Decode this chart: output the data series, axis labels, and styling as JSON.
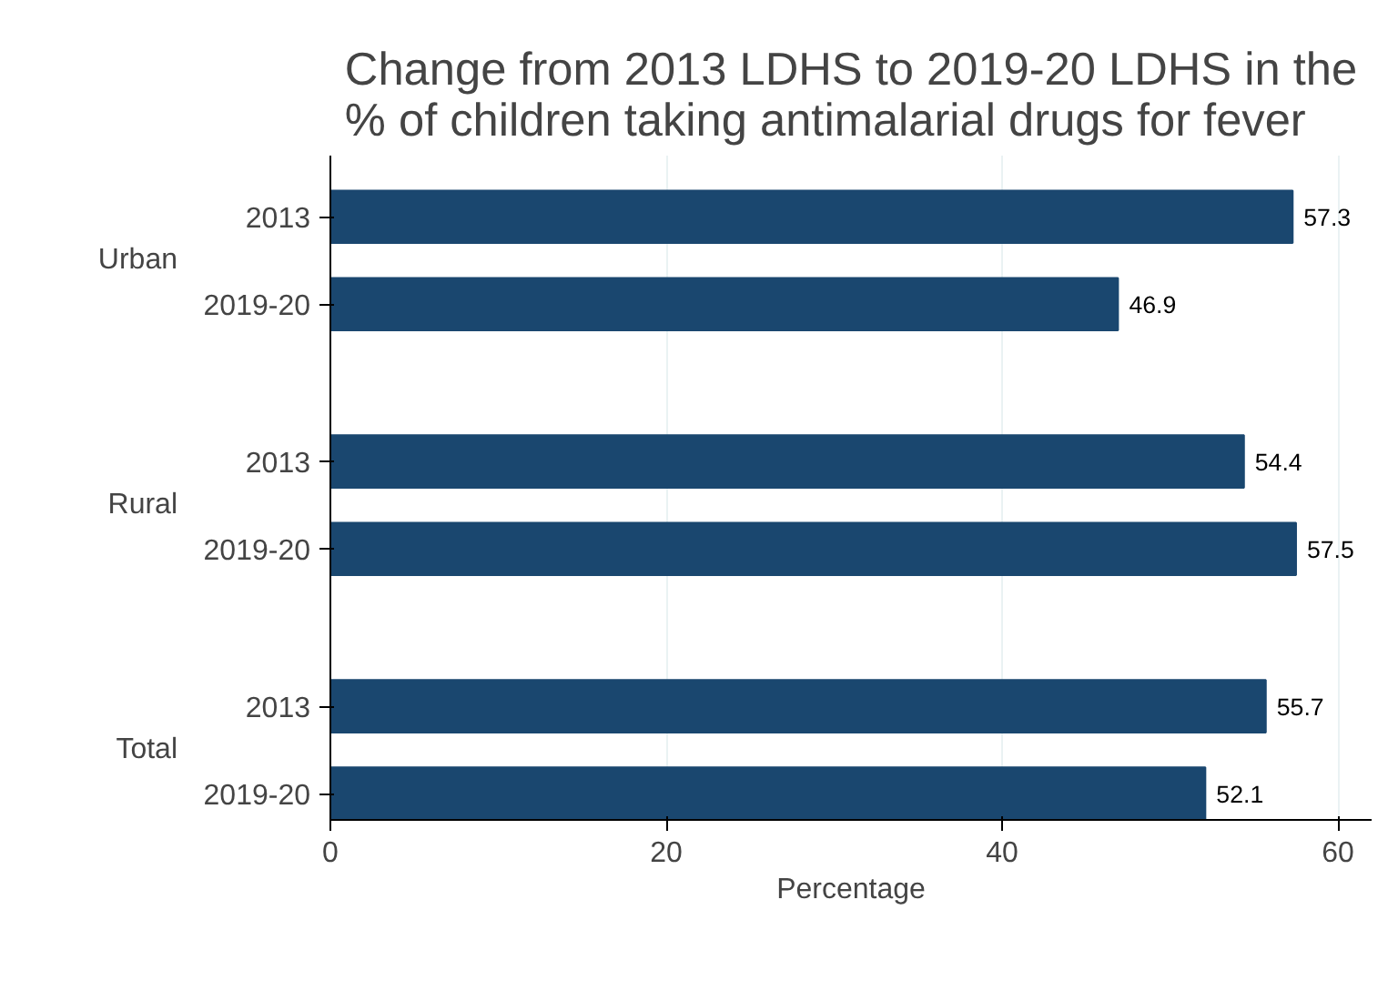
{
  "chart_data": {
    "type": "bar",
    "orientation": "horizontal",
    "title": "Change from 2013 LDHS to 2019-20 LDHS in the\n% of children taking antimalarial drugs for fever",
    "xlabel": "Percentage",
    "categories": [
      "2013",
      "2019-20",
      "2013",
      "2019-20",
      "2013",
      "2019-20"
    ],
    "annotations": [
      "Urban",
      "Rural",
      "Total"
    ],
    "values": [
      57.3,
      46.9,
      54.4,
      57.5,
      55.7,
      52.1
    ],
    "color": "#1a476f",
    "xlim": [
      0,
      62
    ],
    "xticks": [
      0,
      20,
      40,
      60
    ],
    "grid": "x",
    "data_labels": true
  }
}
